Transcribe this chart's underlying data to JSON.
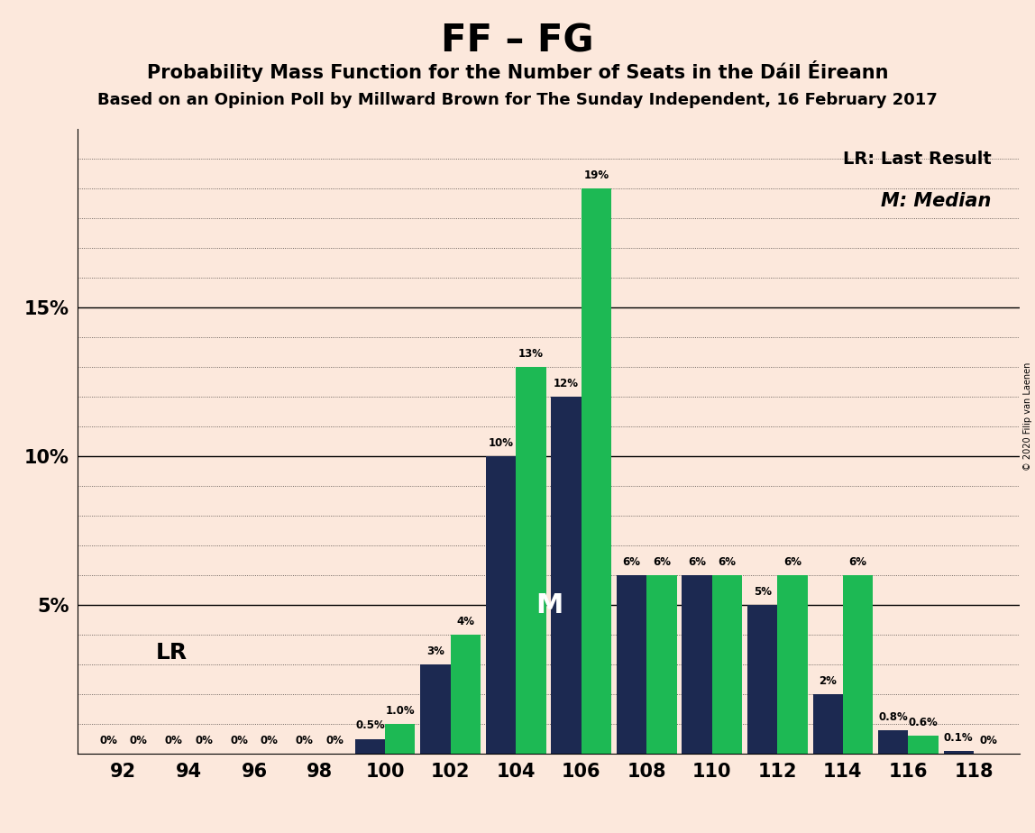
{
  "title": "FF – FG",
  "subtitle1": "Probability Mass Function for the Number of Seats in the Dáil Éireann",
  "subtitle2": "Based on an Opinion Poll by Millward Brown for The Sunday Independent, 16 February 2017",
  "copyright": "© 2020 Filip van Laenen",
  "background_color": "#fce8dc",
  "seats": [
    92,
    94,
    96,
    98,
    100,
    102,
    104,
    106,
    108,
    110,
    112,
    114,
    116,
    118
  ],
  "navy_vals": [
    0,
    0,
    0,
    0,
    0.5,
    3,
    10,
    12,
    6,
    6,
    5,
    2,
    0.8,
    0.1
  ],
  "green_vals": [
    0,
    0,
    0,
    0,
    1.0,
    4,
    13,
    19,
    6,
    6,
    6,
    6,
    0.6,
    0
  ],
  "navy_labels": [
    "0%",
    "0%",
    "0%",
    "0%",
    "0.5%",
    "3%",
    "10%",
    "12%",
    "6%",
    "6%",
    "5%",
    "2%",
    "0.8%",
    "0.1%"
  ],
  "green_labels": [
    "0%",
    "0%",
    "0%",
    "0%",
    "1.0%",
    "4%",
    "13%",
    "19%",
    "6%",
    "6%",
    "6%",
    "6%",
    "0.6%",
    "0%"
  ],
  "navy_color": "#1c2951",
  "green_color": "#1db954",
  "lr_index": 4,
  "median_index": 6,
  "legend_lr": "LR: Last Result",
  "legend_m": "M: Median",
  "bar_width": 0.46,
  "ylim_max": 21,
  "ytick_major": [
    5,
    10,
    15
  ],
  "ytick_labels": [
    "5%",
    "10%",
    "15%"
  ],
  "ytick_minor_step": 1
}
